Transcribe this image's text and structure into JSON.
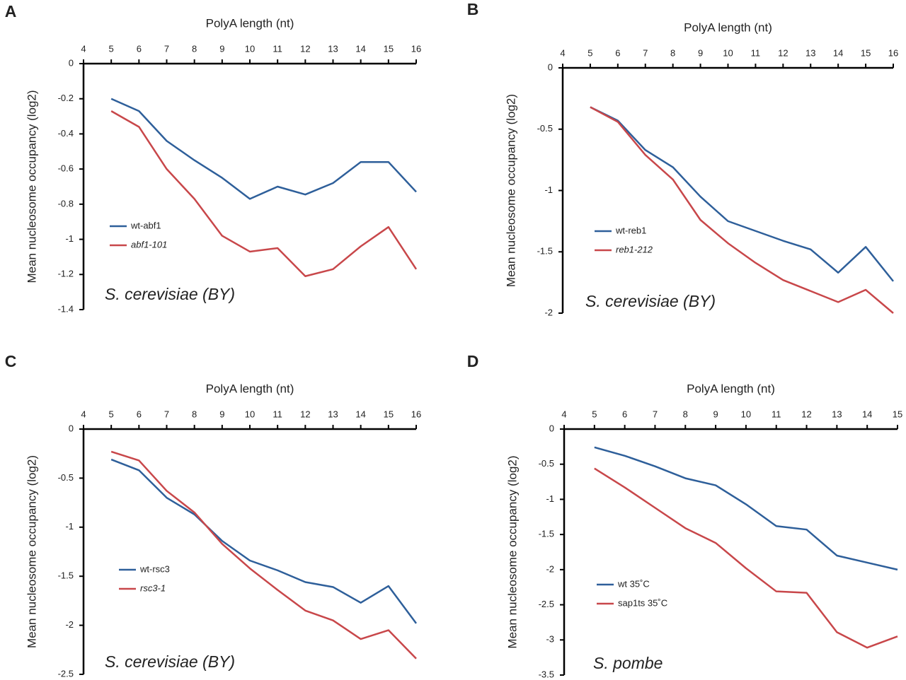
{
  "chart_data": [
    {
      "type": "line",
      "panel_label": "A",
      "x_label": "PolyA length (nt)",
      "y_label": "Mean nucleosome occupancy (log2)",
      "annotation": "S. cerevisiae (BY)",
      "x": [
        5,
        6,
        7,
        8,
        9,
        10,
        11,
        12,
        13,
        14,
        15,
        16
      ],
      "series": [
        {
          "name": "wt-abf1",
          "color": "#2e5f9a",
          "values": [
            -0.2,
            -0.27,
            -0.44,
            -0.55,
            -0.65,
            -0.77,
            -0.7,
            -0.745,
            -0.68,
            -0.56,
            -0.56,
            -0.73
          ]
        },
        {
          "name": "abf1-101",
          "color": "#c8474a",
          "values": [
            -0.27,
            -0.36,
            -0.6,
            -0.77,
            -0.98,
            -1.07,
            -1.05,
            -1.21,
            -1.17,
            -1.04,
            -0.93,
            -1.17
          ]
        }
      ],
      "xlim": [
        4,
        16
      ],
      "xticks": [
        4,
        5,
        6,
        7,
        8,
        9,
        10,
        11,
        12,
        13,
        14,
        15,
        16
      ],
      "ylim": [
        -1.4,
        0
      ],
      "yticks": [
        0,
        -0.2,
        -0.4,
        -0.6,
        -0.8,
        -1,
        -1.2,
        -1.4
      ]
    },
    {
      "type": "line",
      "panel_label": "B",
      "x_label": "PolyA length (nt)",
      "y_label": "Mean nucleosome occupancy (log2)",
      "annotation": "S. cerevisiae (BY)",
      "x": [
        5,
        6,
        7,
        8,
        9,
        10,
        11,
        12,
        13,
        14,
        15,
        16
      ],
      "series": [
        {
          "name": "wt-reb1",
          "color": "#2e5f9a",
          "values": [
            -0.32,
            -0.43,
            -0.67,
            -0.81,
            -1.05,
            -1.25,
            -1.33,
            -1.41,
            -1.48,
            -1.67,
            -1.46,
            -1.74
          ]
        },
        {
          "name": "reb1-212",
          "color": "#c8474a",
          "values": [
            -0.32,
            -0.44,
            -0.71,
            -0.91,
            -1.24,
            -1.43,
            -1.59,
            -1.73,
            -1.82,
            -1.91,
            -1.81,
            -2.0
          ]
        }
      ],
      "xlim": [
        4,
        16
      ],
      "xticks": [
        4,
        5,
        6,
        7,
        8,
        9,
        10,
        11,
        12,
        13,
        14,
        15,
        16
      ],
      "ylim": [
        -2,
        0
      ],
      "yticks": [
        0,
        -0.5,
        -1,
        -1.5,
        -2
      ]
    },
    {
      "type": "line",
      "panel_label": "C",
      "x_label": "PolyA length (nt)",
      "y_label": "Mean nucleosome occupancy (log2)",
      "annotation": "S. cerevisiae (BY)",
      "x": [
        5,
        6,
        7,
        8,
        9,
        10,
        11,
        12,
        13,
        14,
        15,
        16
      ],
      "series": [
        {
          "name": "wt-rsc3",
          "color": "#2e5f9a",
          "values": [
            -0.31,
            -0.42,
            -0.7,
            -0.87,
            -1.14,
            -1.34,
            -1.44,
            -1.56,
            -1.61,
            -1.77,
            -1.6,
            -1.98
          ]
        },
        {
          "name": "rsc3-1",
          "color": "#c8474a",
          "values": [
            -0.23,
            -0.32,
            -0.63,
            -0.85,
            -1.17,
            -1.42,
            -1.64,
            -1.85,
            -1.95,
            -2.14,
            -2.05,
            -2.34
          ]
        }
      ],
      "xlim": [
        4,
        16
      ],
      "xticks": [
        4,
        5,
        6,
        7,
        8,
        9,
        10,
        11,
        12,
        13,
        14,
        15,
        16
      ],
      "ylim": [
        -2.5,
        0
      ],
      "yticks": [
        0,
        -0.5,
        -1,
        -1.5,
        -2,
        -2.5
      ]
    },
    {
      "type": "line",
      "panel_label": "D",
      "x_label": "PolyA length (nt)",
      "y_label": "Mean nucleosome occupancy (log2)",
      "annotation": "S. pombe",
      "x": [
        5,
        6,
        7,
        8,
        9,
        10,
        11,
        12,
        13,
        14,
        15
      ],
      "series": [
        {
          "name": "wt 35˚C",
          "color": "#2e5f9a",
          "values": [
            -0.26,
            -0.38,
            -0.53,
            -0.7,
            -0.8,
            -1.07,
            -1.38,
            -1.43,
            -1.8,
            -1.9,
            -2.0
          ]
        },
        {
          "name": "sap1ts 35˚C",
          "color": "#c8474a",
          "values": [
            -0.56,
            -0.83,
            -1.12,
            -1.41,
            -1.62,
            -1.98,
            -2.31,
            -2.33,
            -2.89,
            -3.11,
            -2.95
          ]
        }
      ],
      "xlim": [
        4,
        15
      ],
      "xticks": [
        4,
        5,
        6,
        7,
        8,
        9,
        10,
        11,
        12,
        13,
        14,
        15
      ],
      "ylim": [
        -3.5,
        0
      ],
      "yticks": [
        0,
        -0.5,
        -1,
        -1.5,
        -2,
        -2.5,
        -3,
        -3.5
      ]
    }
  ]
}
